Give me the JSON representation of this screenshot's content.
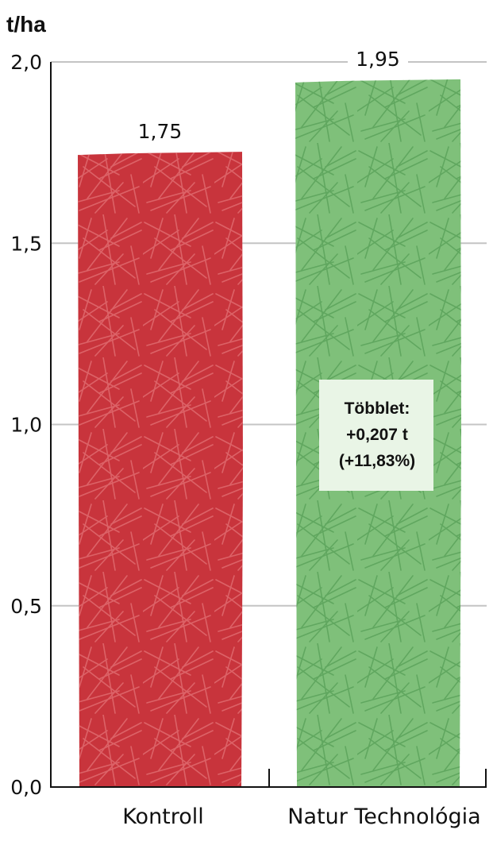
{
  "chart_data": {
    "type": "bar",
    "ylabel": "t/ha",
    "xlabel": "",
    "ylim": [
      0,
      2.0
    ],
    "yticks": [
      {
        "value": 0.0,
        "label": "0,0"
      },
      {
        "value": 0.5,
        "label": "0,5"
      },
      {
        "value": 1.0,
        "label": "1,0"
      },
      {
        "value": 1.5,
        "label": "1,5"
      },
      {
        "value": 2.0,
        "label": "2,0"
      }
    ],
    "grid": true,
    "categories": [
      "Kontroll",
      "Natur Technológia"
    ],
    "values": [
      1.75,
      1.95
    ],
    "value_labels": [
      "1,75",
      "1,95"
    ],
    "colors": [
      "#c8343c",
      "#7fc07a"
    ],
    "annotation": {
      "lines": [
        "Többlet:",
        "+0,207 t",
        "(+11,83%)"
      ],
      "category": "Natur Technológia",
      "background": "#e9f5e6"
    }
  }
}
